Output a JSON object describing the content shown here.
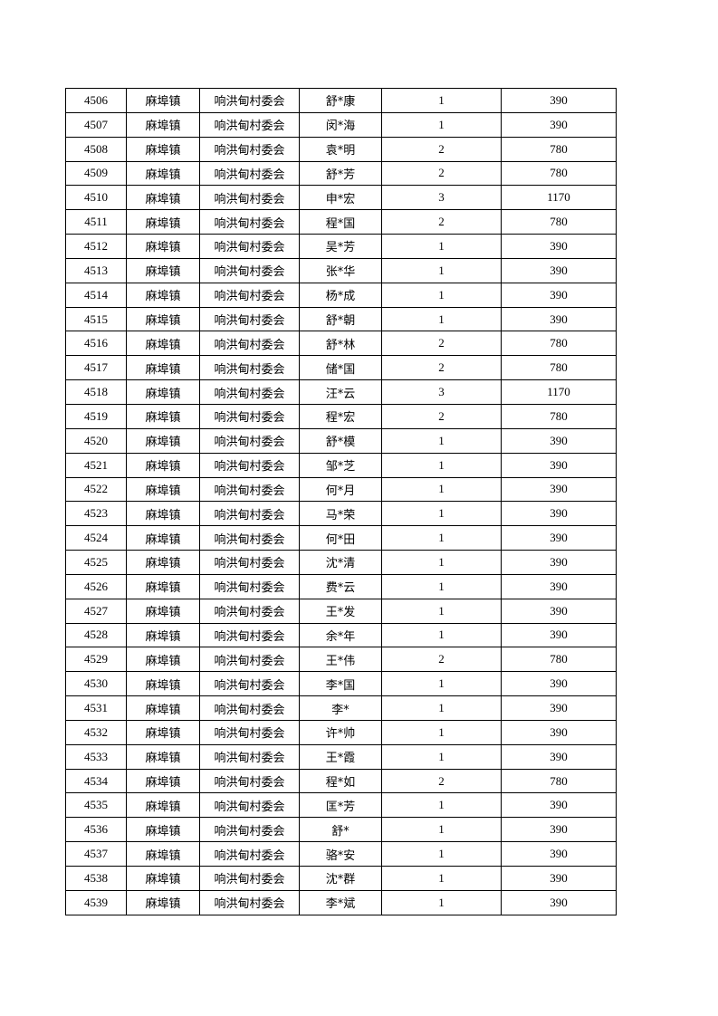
{
  "table": {
    "rows": [
      [
        "4506",
        "麻埠镇",
        "响洪甸村委会",
        "舒*康",
        "1",
        "390"
      ],
      [
        "4507",
        "麻埠镇",
        "响洪甸村委会",
        "闵*海",
        "1",
        "390"
      ],
      [
        "4508",
        "麻埠镇",
        "响洪甸村委会",
        "袁*明",
        "2",
        "780"
      ],
      [
        "4509",
        "麻埠镇",
        "响洪甸村委会",
        "舒*芳",
        "2",
        "780"
      ],
      [
        "4510",
        "麻埠镇",
        "响洪甸村委会",
        "申*宏",
        "3",
        "1170"
      ],
      [
        "4511",
        "麻埠镇",
        "响洪甸村委会",
        "程*国",
        "2",
        "780"
      ],
      [
        "4512",
        "麻埠镇",
        "响洪甸村委会",
        "吴*芳",
        "1",
        "390"
      ],
      [
        "4513",
        "麻埠镇",
        "响洪甸村委会",
        "张*华",
        "1",
        "390"
      ],
      [
        "4514",
        "麻埠镇",
        "响洪甸村委会",
        "杨*成",
        "1",
        "390"
      ],
      [
        "4515",
        "麻埠镇",
        "响洪甸村委会",
        "舒*朝",
        "1",
        "390"
      ],
      [
        "4516",
        "麻埠镇",
        "响洪甸村委会",
        "舒*林",
        "2",
        "780"
      ],
      [
        "4517",
        "麻埠镇",
        "响洪甸村委会",
        "储*国",
        "2",
        "780"
      ],
      [
        "4518",
        "麻埠镇",
        "响洪甸村委会",
        "汪*云",
        "3",
        "1170"
      ],
      [
        "4519",
        "麻埠镇",
        "响洪甸村委会",
        "程*宏",
        "2",
        "780"
      ],
      [
        "4520",
        "麻埠镇",
        "响洪甸村委会",
        "舒*模",
        "1",
        "390"
      ],
      [
        "4521",
        "麻埠镇",
        "响洪甸村委会",
        "邹*芝",
        "1",
        "390"
      ],
      [
        "4522",
        "麻埠镇",
        "响洪甸村委会",
        "何*月",
        "1",
        "390"
      ],
      [
        "4523",
        "麻埠镇",
        "响洪甸村委会",
        "马*荣",
        "1",
        "390"
      ],
      [
        "4524",
        "麻埠镇",
        "响洪甸村委会",
        "何*田",
        "1",
        "390"
      ],
      [
        "4525",
        "麻埠镇",
        "响洪甸村委会",
        "沈*清",
        "1",
        "390"
      ],
      [
        "4526",
        "麻埠镇",
        "响洪甸村委会",
        "费*云",
        "1",
        "390"
      ],
      [
        "4527",
        "麻埠镇",
        "响洪甸村委会",
        "王*发",
        "1",
        "390"
      ],
      [
        "4528",
        "麻埠镇",
        "响洪甸村委会",
        "余*年",
        "1",
        "390"
      ],
      [
        "4529",
        "麻埠镇",
        "响洪甸村委会",
        "王*伟",
        "2",
        "780"
      ],
      [
        "4530",
        "麻埠镇",
        "响洪甸村委会",
        "李*国",
        "1",
        "390"
      ],
      [
        "4531",
        "麻埠镇",
        "响洪甸村委会",
        "李*",
        "1",
        "390"
      ],
      [
        "4532",
        "麻埠镇",
        "响洪甸村委会",
        "许*帅",
        "1",
        "390"
      ],
      [
        "4533",
        "麻埠镇",
        "响洪甸村委会",
        "王*霞",
        "1",
        "390"
      ],
      [
        "4534",
        "麻埠镇",
        "响洪甸村委会",
        "程*如",
        "2",
        "780"
      ],
      [
        "4535",
        "麻埠镇",
        "响洪甸村委会",
        "匡*芳",
        "1",
        "390"
      ],
      [
        "4536",
        "麻埠镇",
        "响洪甸村委会",
        "舒*",
        "1",
        "390"
      ],
      [
        "4537",
        "麻埠镇",
        "响洪甸村委会",
        "骆*安",
        "1",
        "390"
      ],
      [
        "4538",
        "麻埠镇",
        "响洪甸村委会",
        "沈*群",
        "1",
        "390"
      ],
      [
        "4539",
        "麻埠镇",
        "响洪甸村委会",
        "李*斌",
        "1",
        "390"
      ]
    ]
  }
}
